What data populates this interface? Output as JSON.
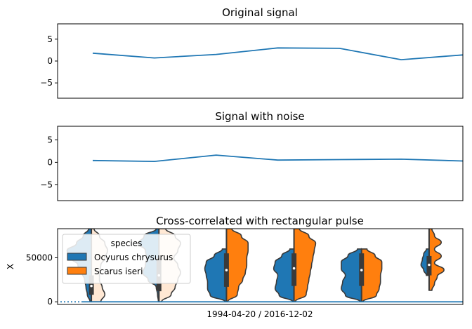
{
  "chart_data": [
    {
      "type": "line",
      "title": "Original signal",
      "xlabel": "",
      "ylabel": "",
      "ylim": [
        -8.5,
        8.5
      ],
      "yticks": [
        5,
        0,
        -5
      ],
      "x": [
        1,
        2,
        3,
        4,
        5,
        6,
        7
      ],
      "values": [
        1.8,
        0.7,
        1.5,
        3.0,
        2.9,
        0.3,
        1.4
      ],
      "color": "#1f77b4",
      "grid": false
    },
    {
      "type": "line",
      "title": "Signal with noise",
      "xlabel": "",
      "ylabel": "",
      "ylim": [
        -8.5,
        8.0
      ],
      "yticks": [
        5,
        0,
        -5
      ],
      "x": [
        1,
        2,
        3,
        4,
        5,
        6,
        7
      ],
      "values": [
        0.4,
        0.2,
        1.6,
        0.5,
        0.6,
        0.7,
        0.3
      ],
      "color": "#1f77b4",
      "grid": false
    },
    {
      "type": "violin",
      "title": "Cross-correlated with rectangular pulse",
      "xlabel": "1994-04-20 / 2016-12-02",
      "ylabel": "X",
      "ylim": [
        -3000,
        83000
      ],
      "yticks": [
        50000,
        0
      ],
      "legend": {
        "title": "species",
        "placement": "upper-left",
        "entries": [
          {
            "label": "Ocyurus chrysurus",
            "color": "#1f77b4"
          },
          {
            "label": "Scarus iseri",
            "color": "#ff7f0e"
          }
        ]
      },
      "groups": [
        {
          "left": {
            "min": 0,
            "max": 83000,
            "q1": 8000,
            "median": 18000,
            "q3": 30000,
            "widths": [
              0.1,
              0.3,
              0.55,
              0.9,
              0.75,
              0.5,
              0.35,
              0.25,
              0.2,
              0.15,
              0.05
            ]
          },
          "right": {
            "min": 0,
            "max": 83000,
            "q1": 8000,
            "median": 18000,
            "q3": 30000,
            "widths": [
              0.1,
              0.3,
              0.5,
              0.6,
              0.5,
              0.35,
              0.3,
              0.3,
              0.4,
              0.5,
              0.35
            ],
            "faded": true
          }
        },
        {
          "left": {
            "min": 0,
            "max": 83000,
            "q1": 12000,
            "median": 30000,
            "q3": 50000,
            "widths": [
              0.1,
              0.55,
              0.75,
              0.5,
              0.45,
              0.5,
              0.6,
              0.4,
              0.1,
              0.05,
              0.02
            ]
          },
          "right": {
            "min": 0,
            "max": 83000,
            "q1": 12000,
            "median": 30000,
            "q3": 50000,
            "widths": [
              0.25,
              0.6,
              0.8,
              0.7,
              0.55,
              0.7,
              0.8,
              0.7,
              0.6,
              0.45,
              0.1
            ],
            "faded": true
          }
        },
        {
          "left": {
            "min": 0,
            "max": 60000,
            "q1": 17000,
            "median": 36000,
            "q3": 55000,
            "widths": [
              0.15,
              0.45,
              0.75,
              0.8,
              0.75,
              0.7,
              0.7,
              0.6,
              0.05
            ]
          },
          "right": {
            "min": 0,
            "max": 83000,
            "q1": 17000,
            "median": 36000,
            "q3": 55000,
            "widths": [
              0.2,
              0.55,
              0.8,
              0.8,
              0.75,
              0.75,
              0.7,
              0.6,
              0.45,
              0.4,
              0.05
            ]
          }
        },
        {
          "left": {
            "min": 0,
            "max": 60000,
            "q1": 18000,
            "median": 38000,
            "q3": 55000,
            "widths": [
              0.15,
              0.45,
              0.7,
              0.75,
              0.6,
              0.65,
              0.7,
              0.55,
              0.05
            ]
          },
          "right": {
            "min": 0,
            "max": 83000,
            "q1": 18000,
            "median": 38000,
            "q3": 55000,
            "widths": [
              0.2,
              0.55,
              0.8,
              0.75,
              0.7,
              0.65,
              0.6,
              0.55,
              0.5,
              0.45,
              0.05
            ]
          }
        },
        {
          "left": {
            "min": 0,
            "max": 60000,
            "q1": 18000,
            "median": 36000,
            "q3": 55000,
            "widths": [
              0.15,
              0.5,
              0.75,
              0.75,
              0.6,
              0.7,
              0.75,
              0.6,
              0.05
            ]
          },
          "right": {
            "min": 0,
            "max": 60000,
            "q1": 18000,
            "median": 36000,
            "q3": 55000,
            "widths": [
              0.2,
              0.5,
              0.75,
              0.75,
              0.7,
              0.7,
              0.65,
              0.55,
              0.05
            ]
          }
        },
        {
          "left": {
            "min": 30000,
            "max": 60000,
            "q1": 30000,
            "median": 42000,
            "q3": 52000,
            "widths": [
              0.1,
              0.2,
              0.25,
              0.3,
              0.2,
              0.1
            ]
          },
          "right": {
            "min": 13000,
            "max": 83000,
            "q1": 30000,
            "median": 42000,
            "q3": 52000,
            "widths": [
              0.1,
              0.2,
              0.45,
              0.2,
              0.45,
              0.2,
              0.55,
              0.3,
              0.2,
              0.1
            ]
          }
        }
      ],
      "overlay_line": {
        "color": "#1f77b4",
        "y": 0
      },
      "dotted_line": {
        "color": "#1f77b4",
        "y": 0
      }
    }
  ]
}
